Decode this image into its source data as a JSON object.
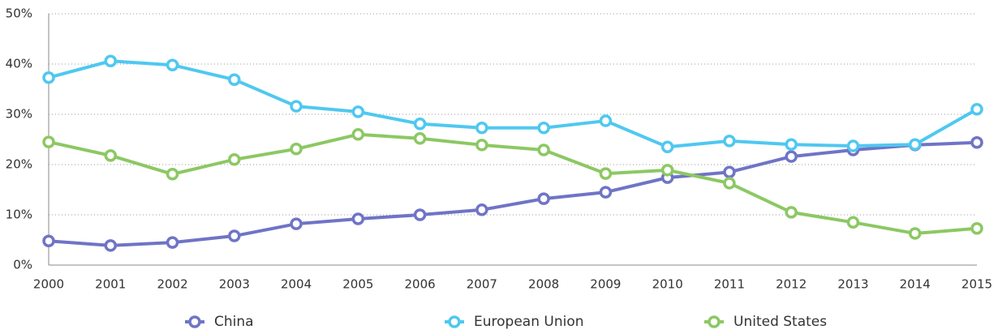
{
  "chart_data": {
    "type": "line",
    "categories": [
      "2000",
      "2001",
      "2002",
      "2003",
      "2004",
      "2005",
      "2006",
      "2007",
      "2008",
      "2009",
      "2010",
      "2011",
      "2012",
      "2013",
      "2014",
      "2015"
    ],
    "series": [
      {
        "name": "China",
        "color": "#6f74c6",
        "values": [
          4.8,
          3.9,
          4.5,
          5.8,
          8.2,
          9.2,
          10,
          11,
          13.2,
          14.5,
          17.4,
          18.5,
          21.6,
          22.9,
          23.9,
          24.4
        ]
      },
      {
        "name": "European Union",
        "color": "#4fc8f0",
        "values": [
          37.3,
          40.6,
          39.8,
          36.9,
          31.6,
          30.5,
          28.1,
          27.3,
          27.3,
          28.7,
          23.5,
          24.7,
          24,
          23.7,
          24,
          31
        ]
      },
      {
        "name": "United States",
        "color": "#8cc863",
        "values": [
          24.5,
          21.8,
          18.1,
          21,
          23.1,
          26,
          25.2,
          23.9,
          22.9,
          18.2,
          18.9,
          16.3,
          10.5,
          8.5,
          6.3,
          7.3
        ]
      }
    ],
    "ylim": [
      0,
      50
    ],
    "yticks": [
      {
        "value": 0,
        "label": "0%"
      },
      {
        "value": 10,
        "label": "10%"
      },
      {
        "value": 20,
        "label": "20%"
      },
      {
        "value": 30,
        "label": "30%"
      },
      {
        "value": 40,
        "label": "40%"
      },
      {
        "value": 50,
        "label": "50%"
      }
    ],
    "grid": true,
    "legend": "bottom"
  }
}
